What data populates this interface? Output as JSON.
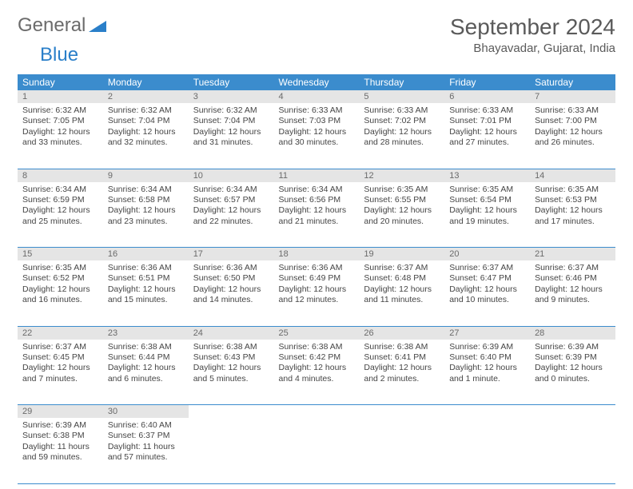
{
  "logo": {
    "word1": "General",
    "word2": "Blue"
  },
  "title": "September 2024",
  "location": "Bhayavadar, Gujarat, India",
  "colors": {
    "header_bg": "#3b8ccd",
    "header_text": "#ffffff",
    "daynum_bg": "#e5e5e5",
    "daynum_text": "#6a6a6a",
    "body_text": "#454545",
    "title_text": "#5a5a5a",
    "border": "#3b8ccd",
    "logo_gray": "#6b6b6b",
    "logo_blue": "#2a7fc9"
  },
  "weekdays": [
    "Sunday",
    "Monday",
    "Tuesday",
    "Wednesday",
    "Thursday",
    "Friday",
    "Saturday"
  ],
  "days": [
    {
      "n": 1,
      "sr": "6:32 AM",
      "ss": "7:05 PM",
      "dl": "12 hours and 33 minutes."
    },
    {
      "n": 2,
      "sr": "6:32 AM",
      "ss": "7:04 PM",
      "dl": "12 hours and 32 minutes."
    },
    {
      "n": 3,
      "sr": "6:32 AM",
      "ss": "7:04 PM",
      "dl": "12 hours and 31 minutes."
    },
    {
      "n": 4,
      "sr": "6:33 AM",
      "ss": "7:03 PM",
      "dl": "12 hours and 30 minutes."
    },
    {
      "n": 5,
      "sr": "6:33 AM",
      "ss": "7:02 PM",
      "dl": "12 hours and 28 minutes."
    },
    {
      "n": 6,
      "sr": "6:33 AM",
      "ss": "7:01 PM",
      "dl": "12 hours and 27 minutes."
    },
    {
      "n": 7,
      "sr": "6:33 AM",
      "ss": "7:00 PM",
      "dl": "12 hours and 26 minutes."
    },
    {
      "n": 8,
      "sr": "6:34 AM",
      "ss": "6:59 PM",
      "dl": "12 hours and 25 minutes."
    },
    {
      "n": 9,
      "sr": "6:34 AM",
      "ss": "6:58 PM",
      "dl": "12 hours and 23 minutes."
    },
    {
      "n": 10,
      "sr": "6:34 AM",
      "ss": "6:57 PM",
      "dl": "12 hours and 22 minutes."
    },
    {
      "n": 11,
      "sr": "6:34 AM",
      "ss": "6:56 PM",
      "dl": "12 hours and 21 minutes."
    },
    {
      "n": 12,
      "sr": "6:35 AM",
      "ss": "6:55 PM",
      "dl": "12 hours and 20 minutes."
    },
    {
      "n": 13,
      "sr": "6:35 AM",
      "ss": "6:54 PM",
      "dl": "12 hours and 19 minutes."
    },
    {
      "n": 14,
      "sr": "6:35 AM",
      "ss": "6:53 PM",
      "dl": "12 hours and 17 minutes."
    },
    {
      "n": 15,
      "sr": "6:35 AM",
      "ss": "6:52 PM",
      "dl": "12 hours and 16 minutes."
    },
    {
      "n": 16,
      "sr": "6:36 AM",
      "ss": "6:51 PM",
      "dl": "12 hours and 15 minutes."
    },
    {
      "n": 17,
      "sr": "6:36 AM",
      "ss": "6:50 PM",
      "dl": "12 hours and 14 minutes."
    },
    {
      "n": 18,
      "sr": "6:36 AM",
      "ss": "6:49 PM",
      "dl": "12 hours and 12 minutes."
    },
    {
      "n": 19,
      "sr": "6:37 AM",
      "ss": "6:48 PM",
      "dl": "12 hours and 11 minutes."
    },
    {
      "n": 20,
      "sr": "6:37 AM",
      "ss": "6:47 PM",
      "dl": "12 hours and 10 minutes."
    },
    {
      "n": 21,
      "sr": "6:37 AM",
      "ss": "6:46 PM",
      "dl": "12 hours and 9 minutes."
    },
    {
      "n": 22,
      "sr": "6:37 AM",
      "ss": "6:45 PM",
      "dl": "12 hours and 7 minutes."
    },
    {
      "n": 23,
      "sr": "6:38 AM",
      "ss": "6:44 PM",
      "dl": "12 hours and 6 minutes."
    },
    {
      "n": 24,
      "sr": "6:38 AM",
      "ss": "6:43 PM",
      "dl": "12 hours and 5 minutes."
    },
    {
      "n": 25,
      "sr": "6:38 AM",
      "ss": "6:42 PM",
      "dl": "12 hours and 4 minutes."
    },
    {
      "n": 26,
      "sr": "6:38 AM",
      "ss": "6:41 PM",
      "dl": "12 hours and 2 minutes."
    },
    {
      "n": 27,
      "sr": "6:39 AM",
      "ss": "6:40 PM",
      "dl": "12 hours and 1 minute."
    },
    {
      "n": 28,
      "sr": "6:39 AM",
      "ss": "6:39 PM",
      "dl": "12 hours and 0 minutes."
    },
    {
      "n": 29,
      "sr": "6:39 AM",
      "ss": "6:38 PM",
      "dl": "11 hours and 59 minutes."
    },
    {
      "n": 30,
      "sr": "6:40 AM",
      "ss": "6:37 PM",
      "dl": "11 hours and 57 minutes."
    }
  ],
  "labels": {
    "sunrise": "Sunrise:",
    "sunset": "Sunset:",
    "daylight": "Daylight:"
  },
  "layout": {
    "start_weekday": 0,
    "total_days": 30,
    "columns": 7
  }
}
